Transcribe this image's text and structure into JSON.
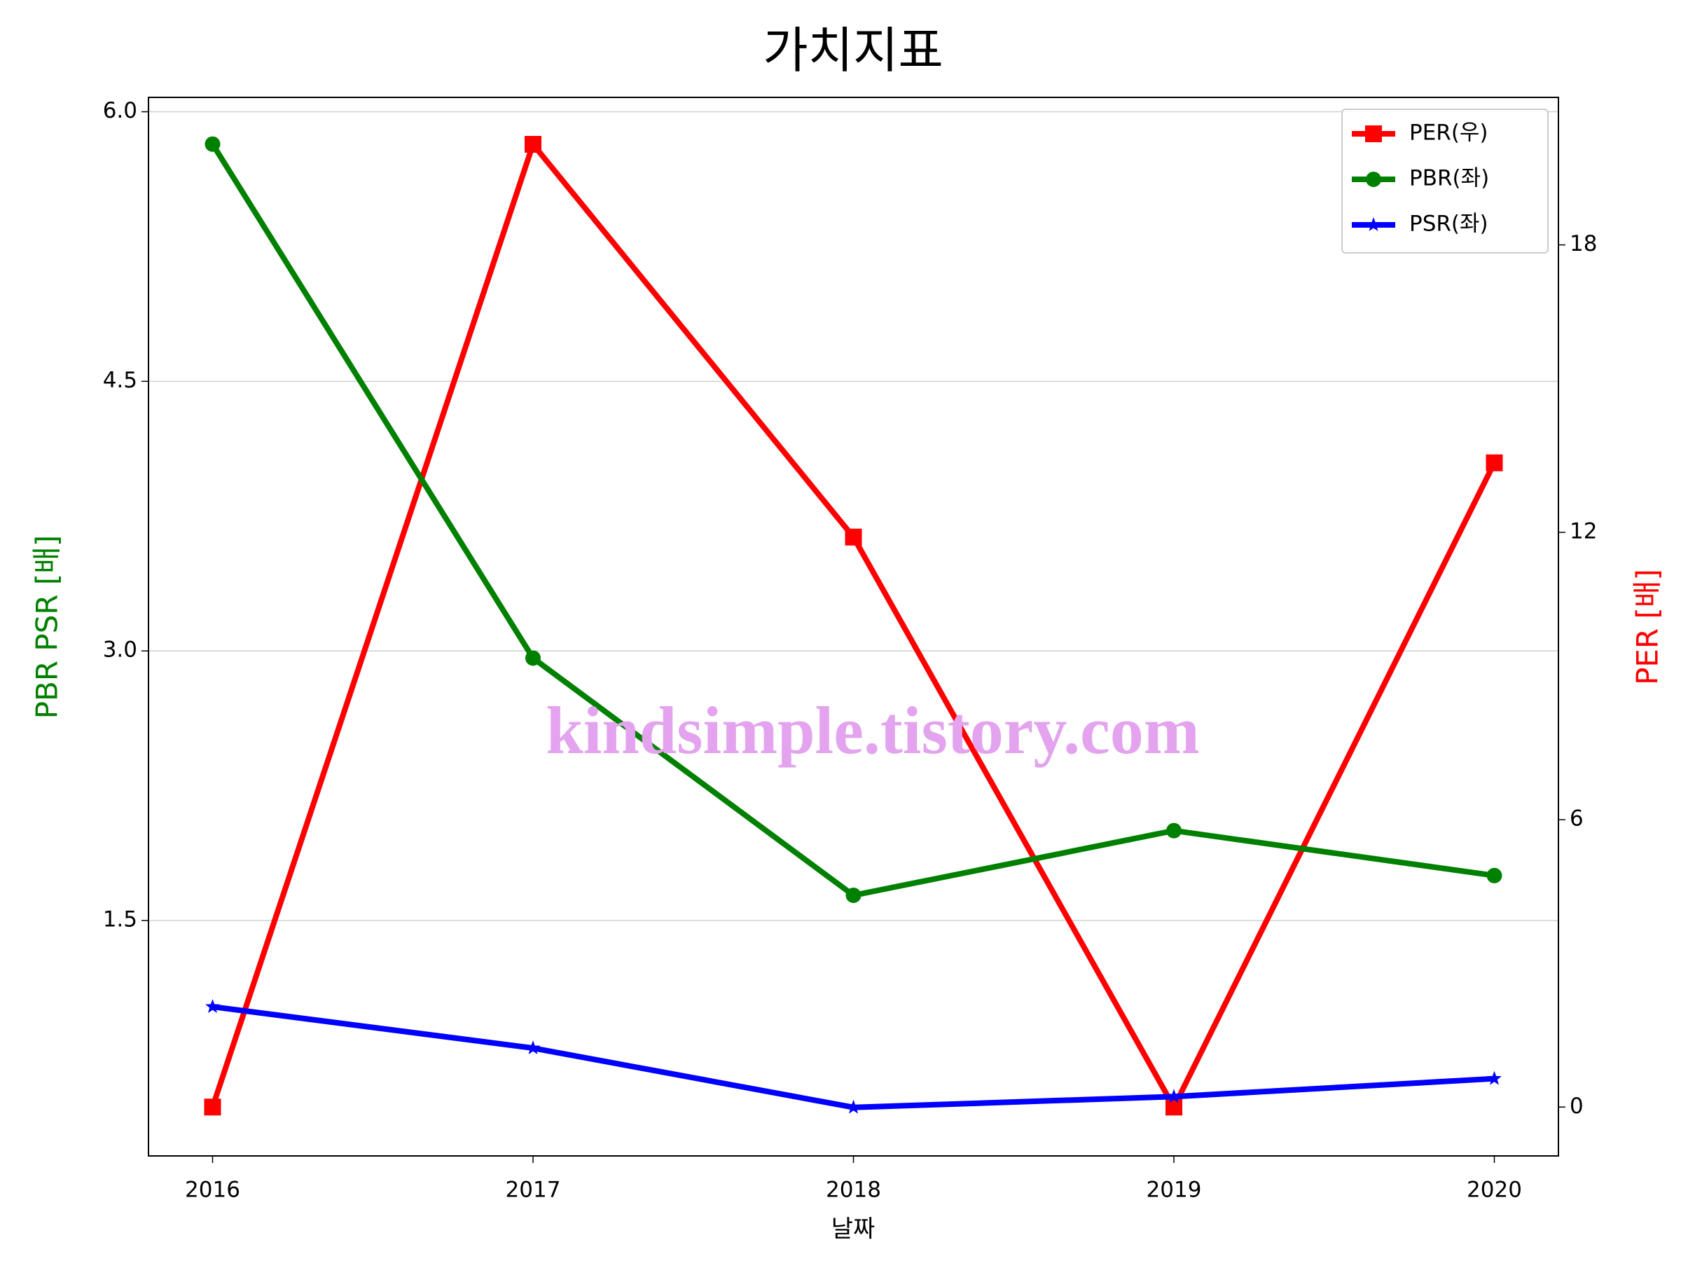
{
  "chart_data": {
    "type": "line",
    "title": "가치지표",
    "xlabel": "날짜",
    "ylabel": "PBR PSR [배]",
    "y2label": "PER [배]",
    "ylabel_color": "#008000",
    "y2label_color": "#ff0000",
    "annotation": "kindsimple.tistory.com",
    "annotation_color": "#e3a3ee",
    "x": [
      2016,
      2017,
      2018,
      2019,
      2020
    ],
    "xlim": [
      2015.8,
      2020.2
    ],
    "xticks": [
      2016,
      2017,
      2018,
      2019,
      2020
    ],
    "ylim": [
      0.19,
      6.08
    ],
    "yticks": [
      1.5,
      {
        "value": 3,
        "label": "3.0"
      },
      4.5,
      {
        "value": 6,
        "label": "6.0"
      }
    ],
    "y2lim": [
      -1.02,
      21.08
    ],
    "y2ticks": [
      0,
      6,
      12,
      18
    ],
    "grid": true,
    "legend": "upper right",
    "series": [
      {
        "name": "PER(우)",
        "color": "#ff0000",
        "marker": "square",
        "axis": "y2",
        "values": [
          0,
          20.1,
          11.9,
          0,
          13.45
        ]
      },
      {
        "name": "PBR(좌)",
        "color": "#008000",
        "marker": "circle",
        "values": [
          5.82,
          2.96,
          1.64,
          2.0,
          1.75
        ]
      },
      {
        "name": "PSR(좌)",
        "color": "#0000ff",
        "marker": "star",
        "values": [
          1.02,
          0.79,
          0.46,
          0.52,
          0.62
        ]
      }
    ]
  }
}
